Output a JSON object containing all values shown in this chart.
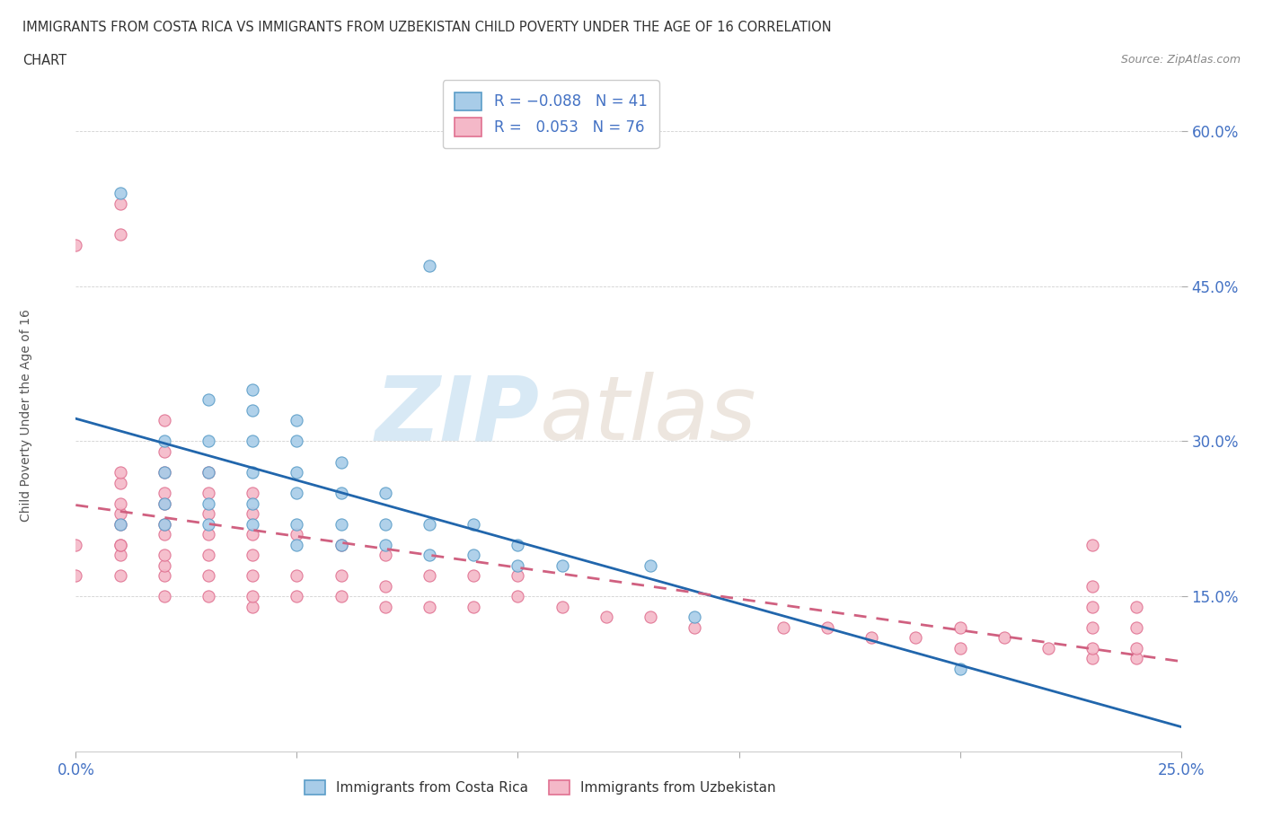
{
  "title_line1": "IMMIGRANTS FROM COSTA RICA VS IMMIGRANTS FROM UZBEKISTAN CHILD POVERTY UNDER THE AGE OF 16 CORRELATION",
  "title_line2": "CHART",
  "source_text": "Source: ZipAtlas.com",
  "ylabel": "Child Poverty Under the Age of 16",
  "xlim": [
    0.0,
    0.25
  ],
  "ylim": [
    0.0,
    0.65
  ],
  "xticks": [
    0.0,
    0.05,
    0.1,
    0.15,
    0.2,
    0.25
  ],
  "xticklabels": [
    "0.0%",
    "",
    "",
    "",
    "",
    "25.0%"
  ],
  "ytick_positions": [
    0.15,
    0.3,
    0.45,
    0.6
  ],
  "ytick_labels": [
    "15.0%",
    "30.0%",
    "45.0%",
    "60.0%"
  ],
  "color_costa_rica": "#a8cce8",
  "color_uzbekistan": "#f4b8c8",
  "color_edge_costa_rica": "#5a9dc8",
  "color_edge_uzbekistan": "#e07090",
  "color_trend_costa_rica": "#2166ac",
  "color_trend_uzbekistan": "#d06080",
  "watermark_zip": "ZIP",
  "watermark_atlas": "atlas",
  "background_color": "#ffffff",
  "legend_label1": "Immigrants from Costa Rica",
  "legend_label2": "Immigrants from Uzbekistan",
  "costa_rica_x": [
    0.01,
    0.01,
    0.02,
    0.02,
    0.02,
    0.02,
    0.03,
    0.03,
    0.03,
    0.03,
    0.03,
    0.04,
    0.04,
    0.04,
    0.04,
    0.04,
    0.04,
    0.05,
    0.05,
    0.05,
    0.05,
    0.05,
    0.05,
    0.06,
    0.06,
    0.06,
    0.06,
    0.07,
    0.07,
    0.07,
    0.08,
    0.08,
    0.08,
    0.09,
    0.09,
    0.1,
    0.1,
    0.11,
    0.13,
    0.14,
    0.2
  ],
  "costa_rica_y": [
    0.22,
    0.54,
    0.22,
    0.24,
    0.27,
    0.3,
    0.22,
    0.24,
    0.27,
    0.3,
    0.34,
    0.22,
    0.24,
    0.27,
    0.3,
    0.33,
    0.35,
    0.2,
    0.22,
    0.25,
    0.27,
    0.3,
    0.32,
    0.2,
    0.22,
    0.25,
    0.28,
    0.2,
    0.22,
    0.25,
    0.19,
    0.22,
    0.47,
    0.19,
    0.22,
    0.18,
    0.2,
    0.18,
    0.18,
    0.13,
    0.08
  ],
  "uzbekistan_x": [
    0.0,
    0.0,
    0.0,
    0.01,
    0.01,
    0.01,
    0.01,
    0.01,
    0.01,
    0.01,
    0.01,
    0.01,
    0.01,
    0.01,
    0.02,
    0.02,
    0.02,
    0.02,
    0.02,
    0.02,
    0.02,
    0.02,
    0.02,
    0.02,
    0.02,
    0.03,
    0.03,
    0.03,
    0.03,
    0.03,
    0.03,
    0.03,
    0.04,
    0.04,
    0.04,
    0.04,
    0.04,
    0.04,
    0.04,
    0.05,
    0.05,
    0.05,
    0.06,
    0.06,
    0.06,
    0.07,
    0.07,
    0.07,
    0.08,
    0.08,
    0.09,
    0.09,
    0.1,
    0.1,
    0.11,
    0.12,
    0.13,
    0.14,
    0.16,
    0.17,
    0.18,
    0.19,
    0.2,
    0.2,
    0.21,
    0.22,
    0.23,
    0.23,
    0.23,
    0.23,
    0.23,
    0.23,
    0.24,
    0.24,
    0.24,
    0.24
  ],
  "uzbekistan_y": [
    0.17,
    0.2,
    0.49,
    0.17,
    0.19,
    0.2,
    0.2,
    0.22,
    0.23,
    0.24,
    0.26,
    0.27,
    0.5,
    0.53,
    0.15,
    0.17,
    0.18,
    0.19,
    0.21,
    0.22,
    0.24,
    0.25,
    0.27,
    0.29,
    0.32,
    0.15,
    0.17,
    0.19,
    0.21,
    0.23,
    0.25,
    0.27,
    0.14,
    0.15,
    0.17,
    0.19,
    0.21,
    0.23,
    0.25,
    0.15,
    0.17,
    0.21,
    0.15,
    0.17,
    0.2,
    0.14,
    0.16,
    0.19,
    0.14,
    0.17,
    0.14,
    0.17,
    0.15,
    0.17,
    0.14,
    0.13,
    0.13,
    0.12,
    0.12,
    0.12,
    0.11,
    0.11,
    0.1,
    0.12,
    0.11,
    0.1,
    0.09,
    0.1,
    0.12,
    0.14,
    0.16,
    0.2,
    0.09,
    0.1,
    0.12,
    0.14
  ]
}
